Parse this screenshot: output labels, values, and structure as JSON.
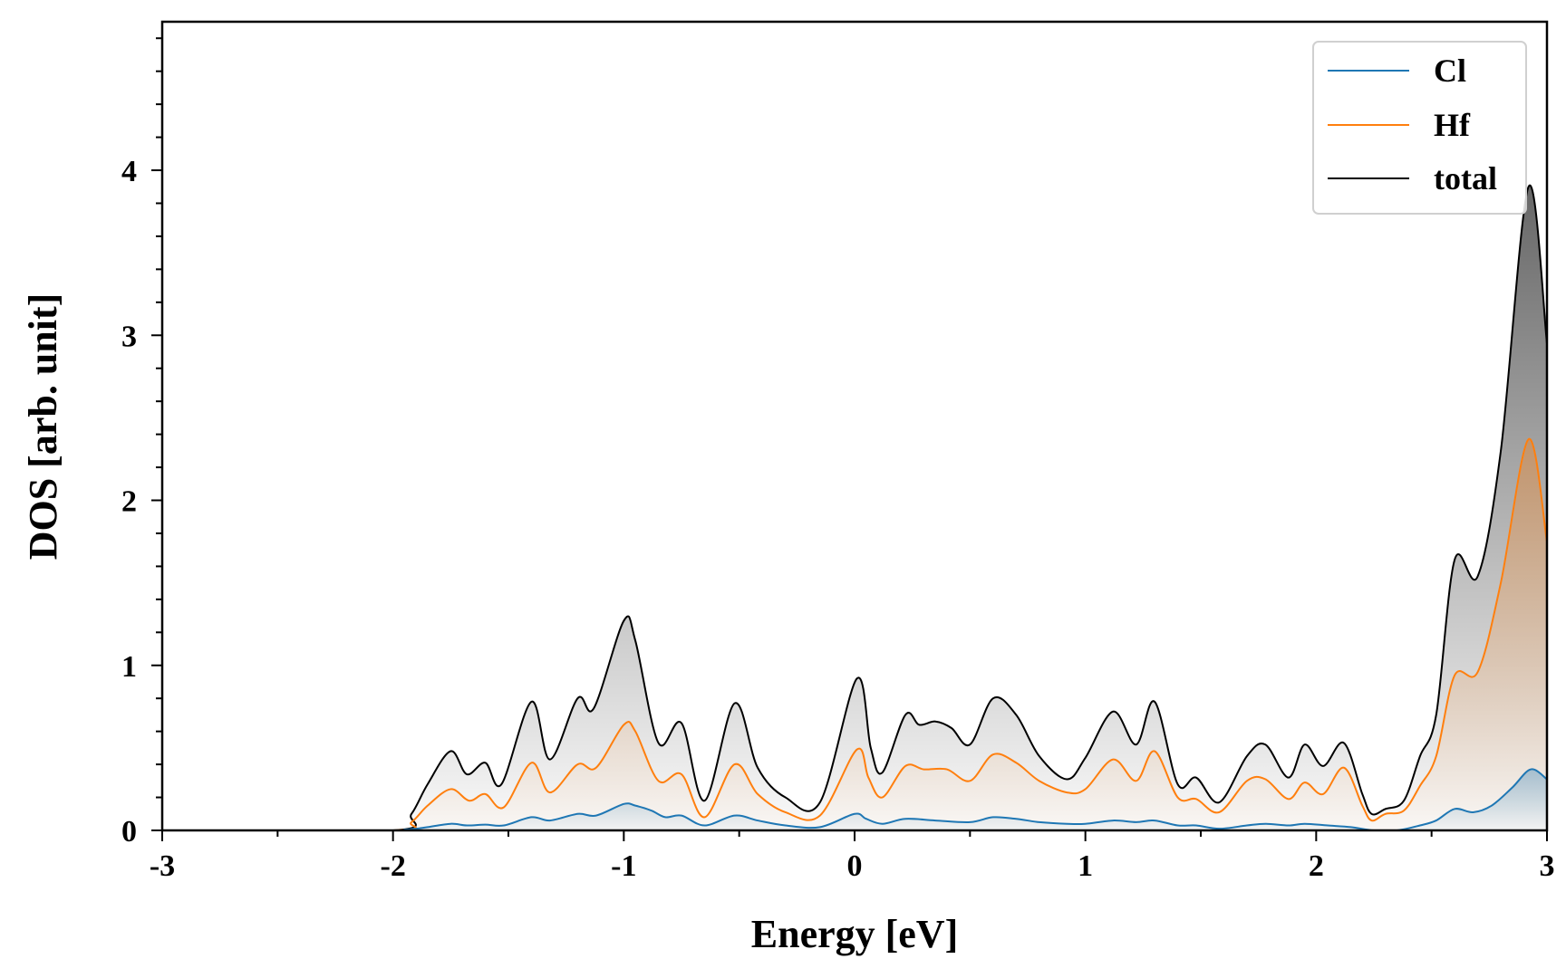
{
  "chart_data": {
    "type": "area",
    "title": "",
    "xlabel": "Energy [eV]",
    "ylabel": "DOS [arb. unit]",
    "xlim": [
      -3,
      3
    ],
    "ylim": [
      0,
      4.9
    ],
    "xticks": [
      -3,
      -2,
      -1,
      0,
      1,
      2,
      3
    ],
    "xtick_labels": [
      "-3",
      "-2",
      "-1",
      "0",
      "1",
      "2",
      "3"
    ],
    "yticks": [
      0,
      1,
      2,
      3,
      4
    ],
    "ytick_labels": [
      "0",
      "1",
      "2",
      "3",
      "4"
    ],
    "legend_position": "top-right",
    "grid": false,
    "series": [
      {
        "name": "Cl",
        "color": "#1f77b4",
        "fill": true,
        "x": [
          -3.0,
          -2.0,
          -1.95,
          -1.9,
          -1.85,
          -1.75,
          -1.68,
          -1.6,
          -1.52,
          -1.4,
          -1.32,
          -1.2,
          -1.12,
          -1.0,
          -0.95,
          -0.88,
          -0.82,
          -0.75,
          -0.65,
          -0.52,
          -0.42,
          -0.3,
          -0.15,
          0.0,
          0.05,
          0.12,
          0.22,
          0.35,
          0.5,
          0.6,
          0.7,
          0.8,
          0.92,
          1.0,
          1.12,
          1.22,
          1.3,
          1.4,
          1.48,
          1.58,
          1.7,
          1.78,
          1.88,
          1.95,
          2.05,
          2.15,
          2.25,
          2.35,
          2.45,
          2.52,
          2.6,
          2.68,
          2.76,
          2.85,
          2.93,
          3.0
        ],
        "y": [
          0,
          0,
          0.005,
          0.01,
          0.02,
          0.04,
          0.03,
          0.035,
          0.03,
          0.08,
          0.06,
          0.1,
          0.09,
          0.16,
          0.15,
          0.12,
          0.08,
          0.09,
          0.03,
          0.09,
          0.06,
          0.03,
          0.02,
          0.1,
          0.07,
          0.04,
          0.07,
          0.06,
          0.05,
          0.08,
          0.07,
          0.05,
          0.04,
          0.04,
          0.06,
          0.05,
          0.06,
          0.03,
          0.03,
          0.01,
          0.03,
          0.04,
          0.03,
          0.04,
          0.03,
          0.02,
          0.0,
          0.0,
          0.03,
          0.06,
          0.13,
          0.11,
          0.15,
          0.26,
          0.37,
          0.31
        ]
      },
      {
        "name": "Hf",
        "color": "#ff7f0e",
        "fill": true,
        "x": [
          -3.0,
          -2.0,
          -1.92,
          -1.85,
          -1.75,
          -1.67,
          -1.6,
          -1.52,
          -1.4,
          -1.32,
          -1.2,
          -1.12,
          -1.0,
          -0.95,
          -0.85,
          -0.75,
          -0.65,
          -0.52,
          -0.42,
          -0.3,
          -0.15,
          0.01,
          0.06,
          0.12,
          0.22,
          0.3,
          0.4,
          0.5,
          0.6,
          0.7,
          0.8,
          0.92,
          1.0,
          1.12,
          1.22,
          1.3,
          1.4,
          1.48,
          1.58,
          1.7,
          1.78,
          1.88,
          1.95,
          2.03,
          2.12,
          2.2,
          2.24,
          2.3,
          2.38,
          2.45,
          2.52,
          2.6,
          2.7,
          2.8,
          2.92,
          3.0
        ],
        "y": [
          0,
          0,
          0.05,
          0.15,
          0.25,
          0.18,
          0.22,
          0.14,
          0.41,
          0.23,
          0.4,
          0.38,
          0.64,
          0.6,
          0.3,
          0.34,
          0.08,
          0.4,
          0.22,
          0.11,
          0.09,
          0.49,
          0.32,
          0.2,
          0.39,
          0.37,
          0.37,
          0.3,
          0.46,
          0.41,
          0.3,
          0.23,
          0.25,
          0.43,
          0.3,
          0.48,
          0.2,
          0.19,
          0.11,
          0.3,
          0.31,
          0.19,
          0.29,
          0.22,
          0.38,
          0.15,
          0.06,
          0.1,
          0.12,
          0.27,
          0.45,
          0.94,
          0.96,
          1.5,
          2.37,
          1.75
        ]
      },
      {
        "name": "total",
        "color": "#000000",
        "fill": true,
        "x": [
          -3.0,
          -2.0,
          -1.92,
          -1.85,
          -1.75,
          -1.68,
          -1.6,
          -1.53,
          -1.4,
          -1.32,
          -1.2,
          -1.13,
          -1.0,
          -0.95,
          -0.85,
          -0.75,
          -0.65,
          -0.52,
          -0.42,
          -0.3,
          -0.15,
          0.01,
          0.07,
          0.12,
          0.22,
          0.28,
          0.35,
          0.42,
          0.5,
          0.6,
          0.7,
          0.8,
          0.92,
          1.0,
          1.12,
          1.22,
          1.3,
          1.4,
          1.48,
          1.58,
          1.7,
          1.78,
          1.88,
          1.95,
          2.03,
          2.12,
          2.2,
          2.24,
          2.3,
          2.38,
          2.45,
          2.52,
          2.6,
          2.7,
          2.8,
          2.92,
          3.0
        ],
        "y": [
          0,
          0,
          0.1,
          0.28,
          0.48,
          0.34,
          0.41,
          0.28,
          0.78,
          0.43,
          0.8,
          0.74,
          1.27,
          1.15,
          0.53,
          0.65,
          0.18,
          0.77,
          0.38,
          0.2,
          0.17,
          0.92,
          0.5,
          0.35,
          0.7,
          0.64,
          0.66,
          0.62,
          0.52,
          0.8,
          0.7,
          0.45,
          0.31,
          0.44,
          0.72,
          0.52,
          0.78,
          0.28,
          0.32,
          0.17,
          0.45,
          0.52,
          0.32,
          0.52,
          0.39,
          0.53,
          0.22,
          0.1,
          0.13,
          0.18,
          0.45,
          0.7,
          1.64,
          1.54,
          2.3,
          3.9,
          2.95
        ]
      }
    ]
  }
}
